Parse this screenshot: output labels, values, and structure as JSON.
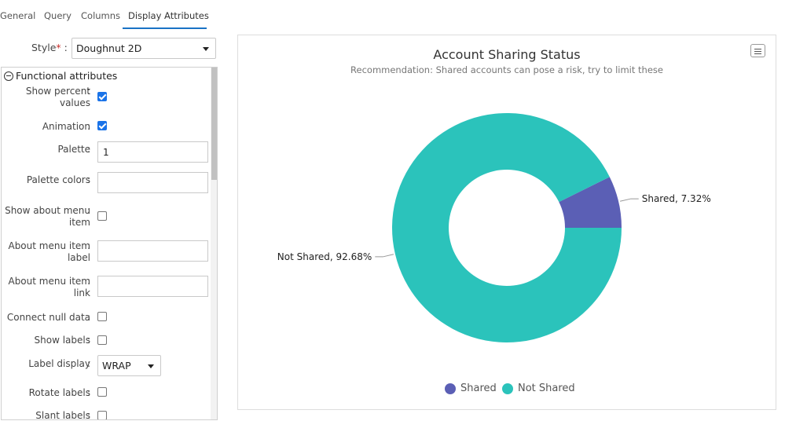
{
  "tabs": [
    {
      "label": "General"
    },
    {
      "label": "Query"
    },
    {
      "label": "Columns"
    },
    {
      "label": "Display Attributes",
      "active": true
    }
  ],
  "style_field": {
    "label": "Style",
    "required_mark": "*",
    "colon": ":",
    "value": "Doughnut 2D"
  },
  "functional_group": {
    "label": "Functional attributes"
  },
  "attributes": [
    {
      "label": "Show percent values",
      "type": "checkbox",
      "checked": true
    },
    {
      "label": "Animation",
      "type": "checkbox",
      "checked": true
    },
    {
      "label": "Palette",
      "type": "text",
      "value": "1"
    },
    {
      "label": "Palette colors",
      "type": "text",
      "value": ""
    },
    {
      "label": "Show about menu item",
      "type": "checkbox",
      "checked": false
    },
    {
      "label": "About menu item label",
      "type": "text",
      "value": ""
    },
    {
      "label": "About menu item link",
      "type": "text",
      "value": ""
    },
    {
      "label": "Connect null data",
      "type": "checkbox",
      "checked": false
    },
    {
      "label": "Show labels",
      "type": "checkbox",
      "checked": false
    },
    {
      "label": "Label display",
      "type": "select",
      "value": "WRAP"
    },
    {
      "label": "Rotate labels",
      "type": "checkbox",
      "checked": false
    },
    {
      "label": "Slant labels",
      "type": "checkbox",
      "checked": false
    }
  ],
  "colon": ":",
  "chart_menu_icon": "hamburger-menu-icon",
  "colors": {
    "accent": "#1a73c5",
    "shared": "#5b5fb5",
    "not_shared": "#2bc3bb"
  },
  "chart_data": {
    "type": "pie",
    "variant": "doughnut",
    "title": "Account Sharing Status",
    "subtitle": "Recommendation: Shared accounts can pose a risk, try to limit these",
    "categories": [
      "Shared",
      "Not Shared"
    ],
    "values": [
      7.32,
      92.68
    ],
    "data_labels": [
      "Shared, 7.32%",
      "Not Shared, 92.68%"
    ],
    "legend": [
      "Shared",
      "Not Shared"
    ],
    "legend_position": "bottom"
  }
}
